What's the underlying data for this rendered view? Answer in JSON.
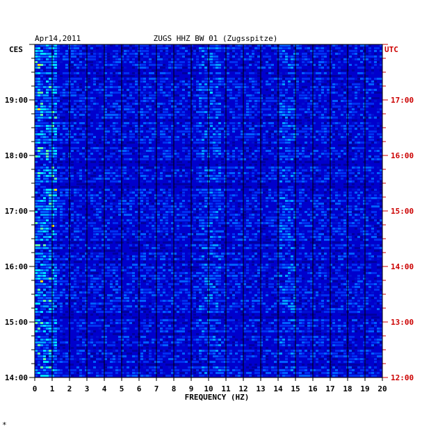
{
  "chart_data": {
    "type": "heatmap",
    "title_left": "Apr14,2011",
    "title": "ZUGS HHZ BW 01 (Zugsspitze)",
    "left_axis_title": "CES",
    "right_axis_title": "UTC",
    "xlabel": "FREQUENCY (HZ)",
    "xlim": [
      0,
      20
    ],
    "x_ticks": [
      "0",
      "1",
      "2",
      "3",
      "4",
      "5",
      "6",
      "7",
      "8",
      "9",
      "10",
      "11",
      "12",
      "13",
      "14",
      "15",
      "16",
      "17",
      "18",
      "19",
      "20"
    ],
    "left_ticks": [
      {
        "label": "19:00",
        "hour": 19
      },
      {
        "label": "18:00",
        "hour": 18
      },
      {
        "label": "17:00",
        "hour": 17
      },
      {
        "label": "16:00",
        "hour": 16
      },
      {
        "label": "15:00",
        "hour": 15
      },
      {
        "label": "14:00",
        "hour": 14
      }
    ],
    "right_ticks": [
      {
        "label": "17:00",
        "hour": 17
      },
      {
        "label": "16:00",
        "hour": 16
      },
      {
        "label": "15:00",
        "hour": 15
      },
      {
        "label": "14:00",
        "hour": 14
      },
      {
        "label": "13:00",
        "hour": 13
      },
      {
        "label": "12:00",
        "hour": 12
      }
    ],
    "time_range_ces": [
      14,
      20
    ],
    "colors": {
      "background": "#0000cc",
      "low": "#0000a0",
      "mid": "#0060ff",
      "high": "#00e0ff",
      "peak": "#ff4000",
      "left_text": "#000000",
      "right_text": "#cc0000"
    }
  },
  "corner_mark": "*"
}
